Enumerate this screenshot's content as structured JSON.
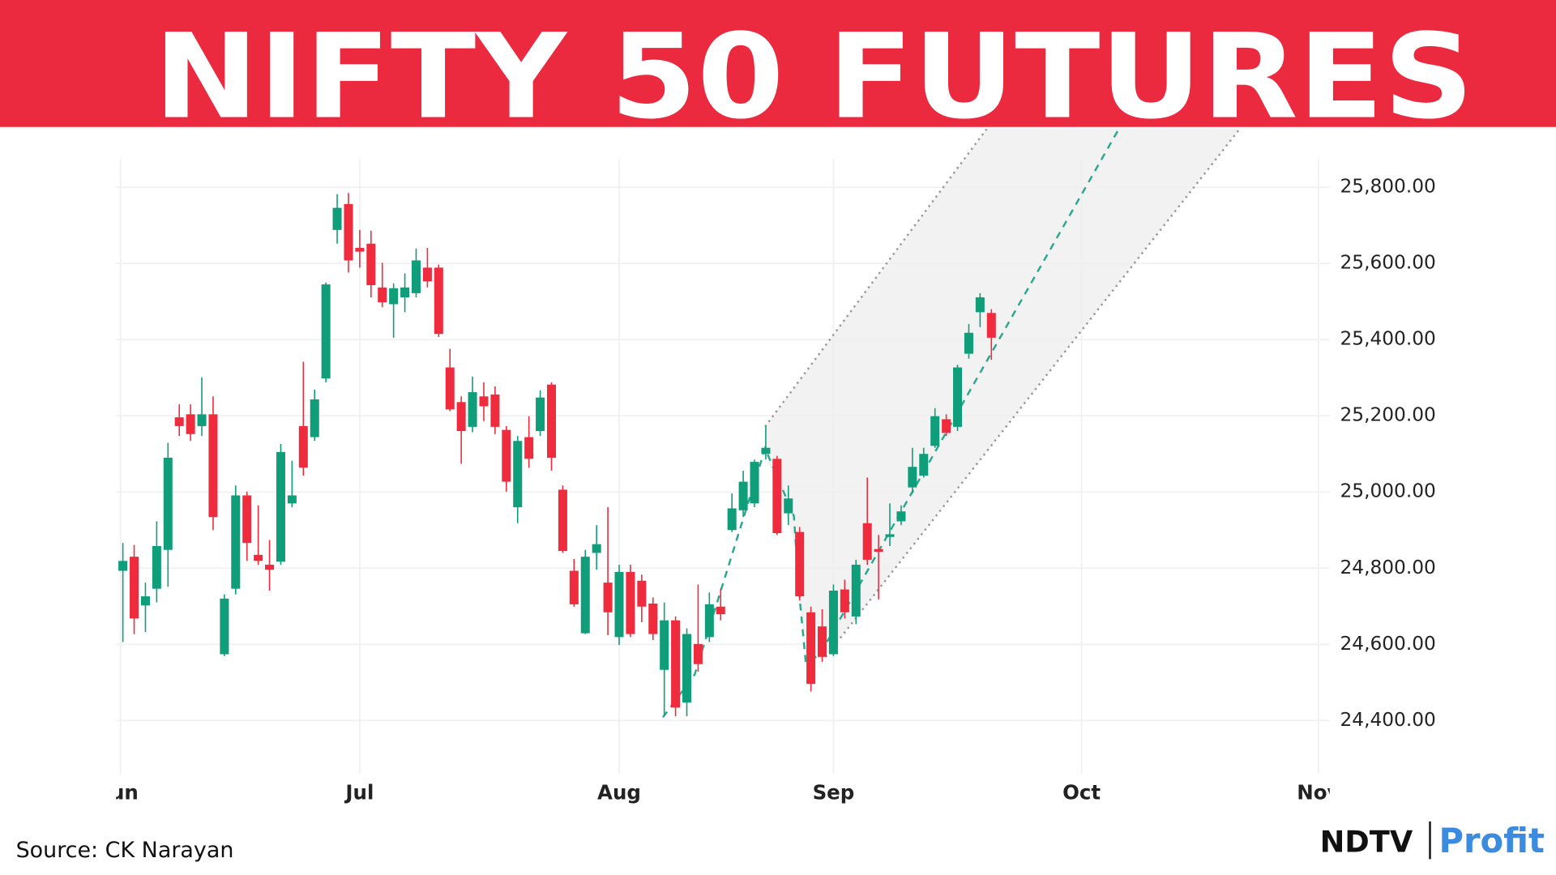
{
  "chart_data": {
    "type": "candlestick",
    "title": "NIFTY 50 FUTURES",
    "open": [
      24793,
      24830,
      24702,
      24746,
      24848,
      25196,
      25204,
      25173,
      25204,
      24574,
      24746,
      24991,
      24835,
      24809,
      24817,
      24970,
      25173,
      25144,
      25298,
      25688,
      25756,
      25641,
      25652,
      25537,
      25493,
      25511,
      25522,
      25589,
      25589,
      25327,
      25236,
      25171,
      25251,
      25256,
      25163,
      24960,
      25144,
      25160,
      25282,
      25006,
      24793,
      24629,
      24840,
      24762,
      24619,
      24790,
      24767,
      24707,
      24533,
      24663,
      24447,
      24601,
      24619,
      24699,
      24900,
      24952,
      24970,
      25100,
      25087,
      24944,
      24895,
      24684,
      24647,
      24574,
      24744,
      24673,
      24918,
      24850,
      24882,
      24923,
      25012,
      25043,
      25121,
      25191,
      25171,
      25363,
      25472,
      25470
    ],
    "high": [
      24866,
      24861,
      24762,
      24923,
      25129,
      25230,
      25230,
      25301,
      25251,
      24731,
      25017,
      25001,
      24965,
      24874,
      25126,
      25082,
      25342,
      25269,
      25550,
      25782,
      25785,
      25688,
      25686,
      25602,
      25548,
      25574,
      25639,
      25641,
      25597,
      25376,
      25251,
      25303,
      25288,
      25277,
      25173,
      25147,
      25199,
      25267,
      25288,
      25017,
      24824,
      24848,
      24913,
      24960,
      24809,
      24809,
      24783,
      24723,
      24710,
      24673,
      24642,
      24757,
      24736,
      24746,
      24996,
      25056,
      25085,
      25173,
      25095,
      25017,
      24908,
      24699,
      24692,
      24757,
      24770,
      24822,
      25038,
      24887,
      24970,
      24965,
      25116,
      25116,
      25220,
      25204,
      25334,
      25441,
      25522,
      25480
    ],
    "low": [
      24606,
      24627,
      24632,
      24710,
      24751,
      25147,
      25134,
      25147,
      24900,
      24569,
      24731,
      24819,
      24809,
      24741,
      24809,
      24960,
      25043,
      25134,
      25288,
      25652,
      25576,
      25589,
      25511,
      25485,
      25405,
      25472,
      25511,
      25537,
      25407,
      25212,
      25074,
      25157,
      25186,
      25152,
      25001,
      24918,
      25064,
      25147,
      25056,
      24840,
      24699,
      24627,
      24796,
      24624,
      24598,
      24619,
      24658,
      24611,
      24411,
      24411,
      24411,
      24528,
      24606,
      24663,
      24895,
      24934,
      24960,
      25085,
      24887,
      24913,
      24715,
      24476,
      24554,
      24569,
      24668,
      24653,
      24809,
      24718,
      24858,
      24913,
      24996,
      25038,
      25116,
      25147,
      25160,
      25350,
      25433,
      25347
    ],
    "close": [
      24819,
      24668,
      24726,
      24858,
      25090,
      25173,
      25152,
      25204,
      24934,
      24720,
      24991,
      24866,
      24819,
      24796,
      25105,
      24991,
      25064,
      25243,
      25545,
      25746,
      25608,
      25631,
      25543,
      25498,
      25535,
      25537,
      25608,
      25553,
      25415,
      25217,
      25160,
      25262,
      25225,
      25171,
      25027,
      25134,
      25087,
      25248,
      25090,
      24845,
      24705,
      24830,
      24863,
      24684,
      24790,
      24627,
      24699,
      24627,
      24663,
      24434,
      24627,
      24548,
      24705,
      24679,
      24957,
      25027,
      25079,
      25116,
      24892,
      24983,
      24726,
      24496,
      24567,
      24741,
      24684,
      24809,
      24822,
      24843,
      24889,
      24949,
      25066,
      25100,
      25199,
      25155,
      25327,
      25418,
      25511,
      25405
    ],
    "up_color": "#0f9d7a",
    "down_color": "#ee2c3e",
    "xlim": [
      -0.6,
      107
    ],
    "xticks": [
      {
        "value": -0.2,
        "label": "Jun"
      },
      {
        "value": 21,
        "label": "Jul"
      },
      {
        "value": 44,
        "label": "Aug"
      },
      {
        "value": 63,
        "label": "Sep"
      },
      {
        "value": 85,
        "label": "Oct"
      },
      {
        "value": 106,
        "label": "Nov"
      }
    ],
    "ylim": [
      24260,
      25875
    ],
    "yticks": [
      {
        "value": 24400,
        "label": "24,400.00"
      },
      {
        "value": 24600,
        "label": "24,600.00"
      },
      {
        "value": 24800,
        "label": "24,800.00"
      },
      {
        "value": 25000,
        "label": "25,000.00"
      },
      {
        "value": 25200,
        "label": "25,200.00"
      },
      {
        "value": 25400,
        "label": "25,400.00"
      },
      {
        "value": 25600,
        "label": "25,600.00"
      },
      {
        "value": 25800,
        "label": "25,800.00"
      }
    ],
    "grid": true
  },
  "source": "Source: CK Narayan",
  "logo": {
    "left": "NDTV",
    "right": "Profit"
  }
}
